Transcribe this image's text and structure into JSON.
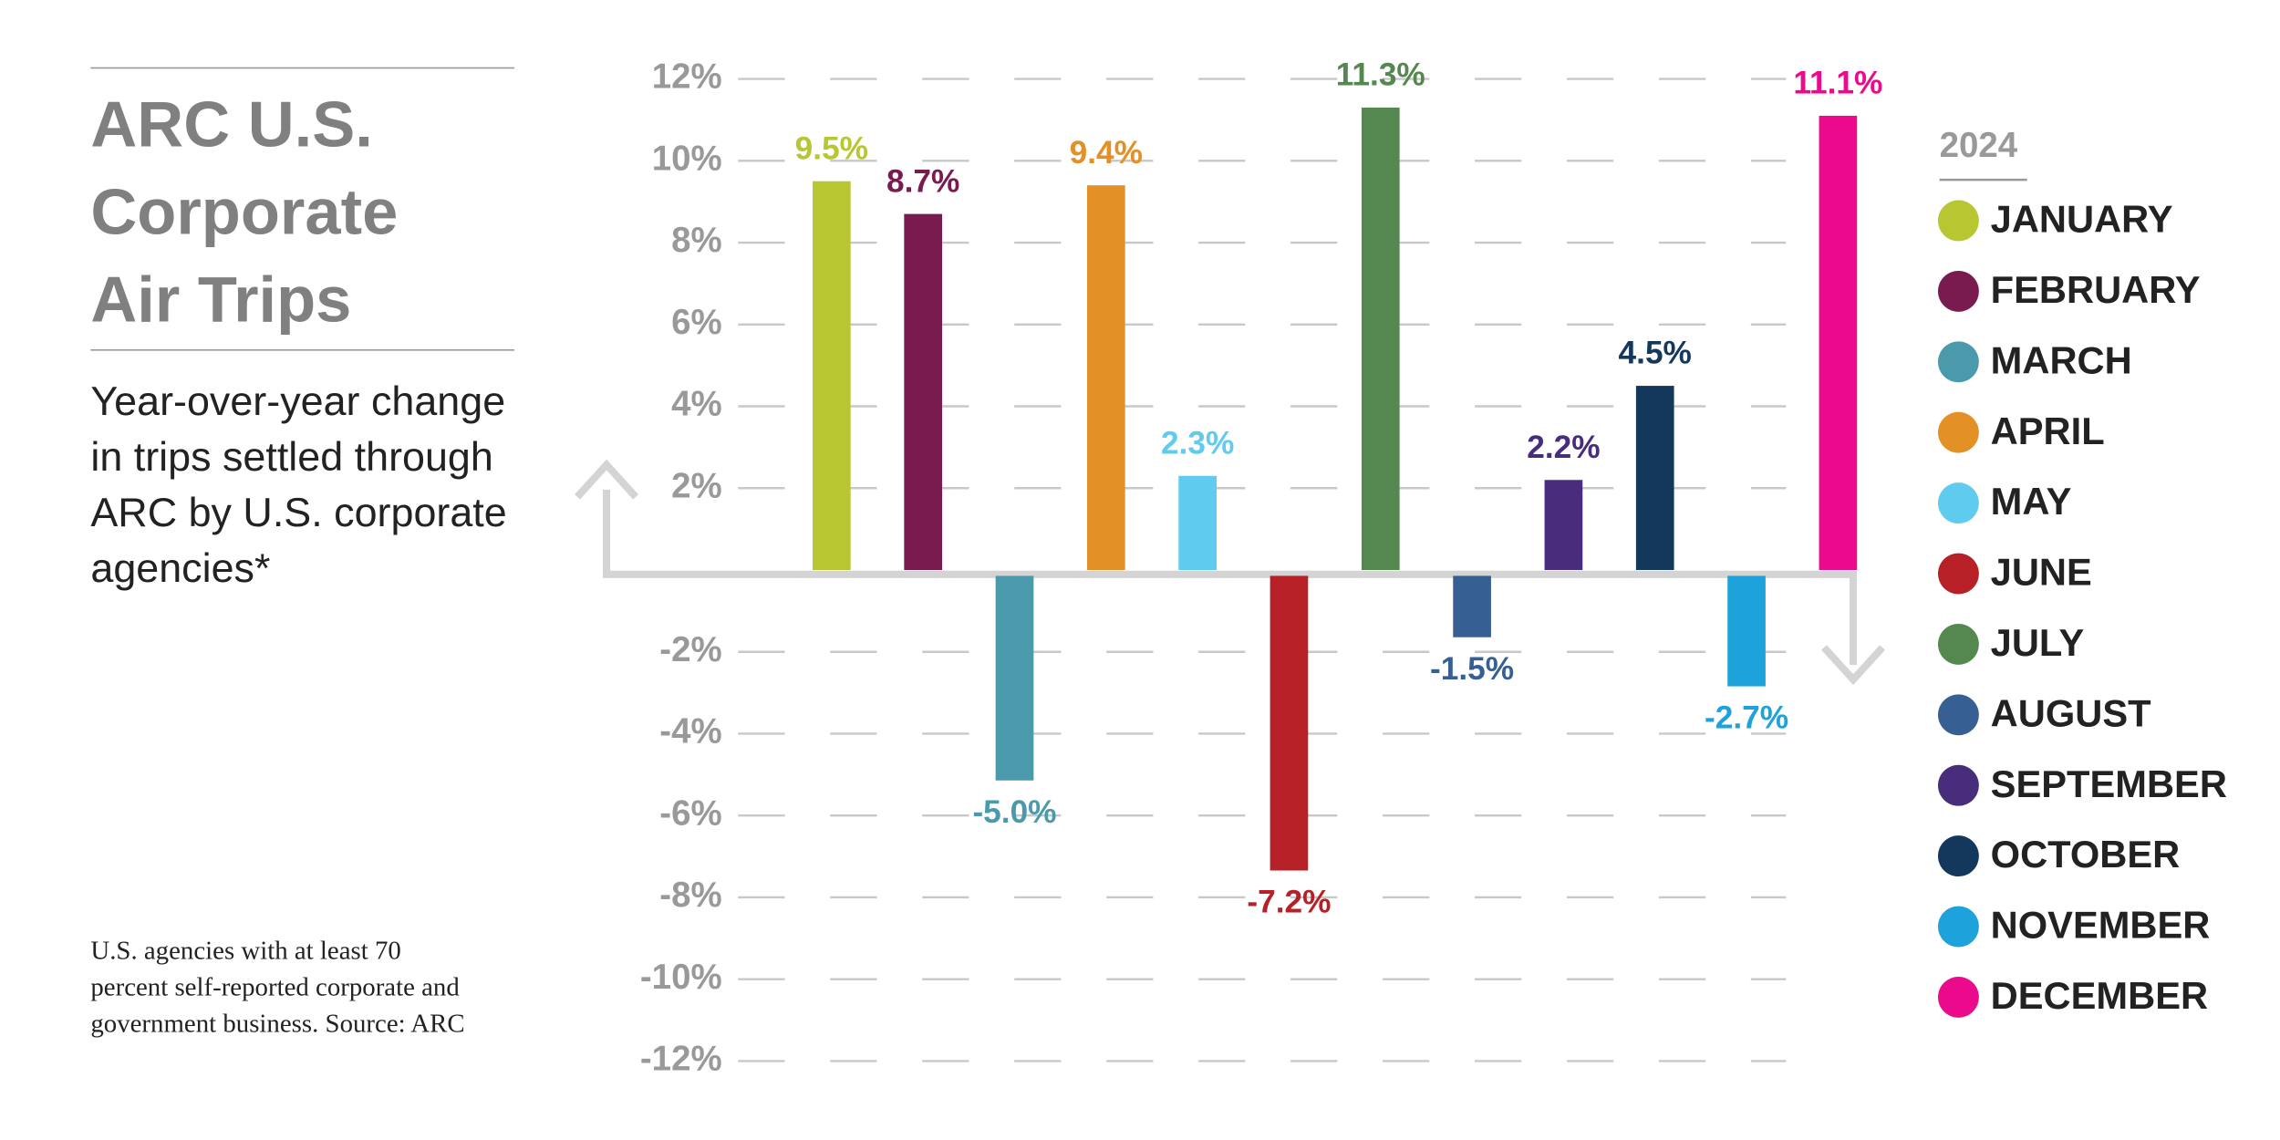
{
  "chart_data": {
    "type": "bar",
    "title": "ARC U.S. Corporate Air Trips",
    "subtitle": "Year-over-year change in trips settled through ARC by U.S. corporate agencies*",
    "note": "U.S. agencies with at least 70 percent self-reported corporate and government business. Source: ARC",
    "legend_title": "2024",
    "categories": [
      "JANUARY",
      "FEBRUARY",
      "MARCH",
      "APRIL",
      "MAY",
      "JUNE",
      "JULY",
      "AUGUST",
      "SEPTEMBER",
      "OCTOBER",
      "NOVEMBER",
      "DECEMBER"
    ],
    "values": [
      9.5,
      8.7,
      -5.0,
      9.4,
      2.3,
      -7.2,
      11.3,
      -1.5,
      2.2,
      4.5,
      -2.7,
      11.1
    ],
    "value_labels": [
      "9.5%",
      "8.7%",
      "-5.0%",
      "9.4%",
      "2.3%",
      "-7.2%",
      "11.3%",
      "-1.5%",
      "2.2%",
      "4.5%",
      "-2.7%",
      "11.1%"
    ],
    "colors": [
      "#b8c632",
      "#7a1b50",
      "#4a9aab",
      "#e39027",
      "#5ecbef",
      "#b72026",
      "#558851",
      "#365f94",
      "#472d7c",
      "#14375c",
      "#1ea2dc",
      "#ec0a8c"
    ],
    "ylim": [
      -12,
      12
    ],
    "yticks": [
      {
        "value": 12,
        "label": "12%"
      },
      {
        "value": 10,
        "label": "10%"
      },
      {
        "value": 8,
        "label": "8%"
      },
      {
        "value": 6,
        "label": "6%"
      },
      {
        "value": 4,
        "label": "4%"
      },
      {
        "value": 2,
        "label": "2%"
      },
      {
        "value": -2,
        "label": "-2%"
      },
      {
        "value": -4,
        "label": "-4%"
      },
      {
        "value": -6,
        "label": "-6%"
      },
      {
        "value": -8,
        "label": "-8%"
      },
      {
        "value": -10,
        "label": "-10%"
      },
      {
        "value": -12,
        "label": "-12%"
      }
    ],
    "grid": true
  }
}
